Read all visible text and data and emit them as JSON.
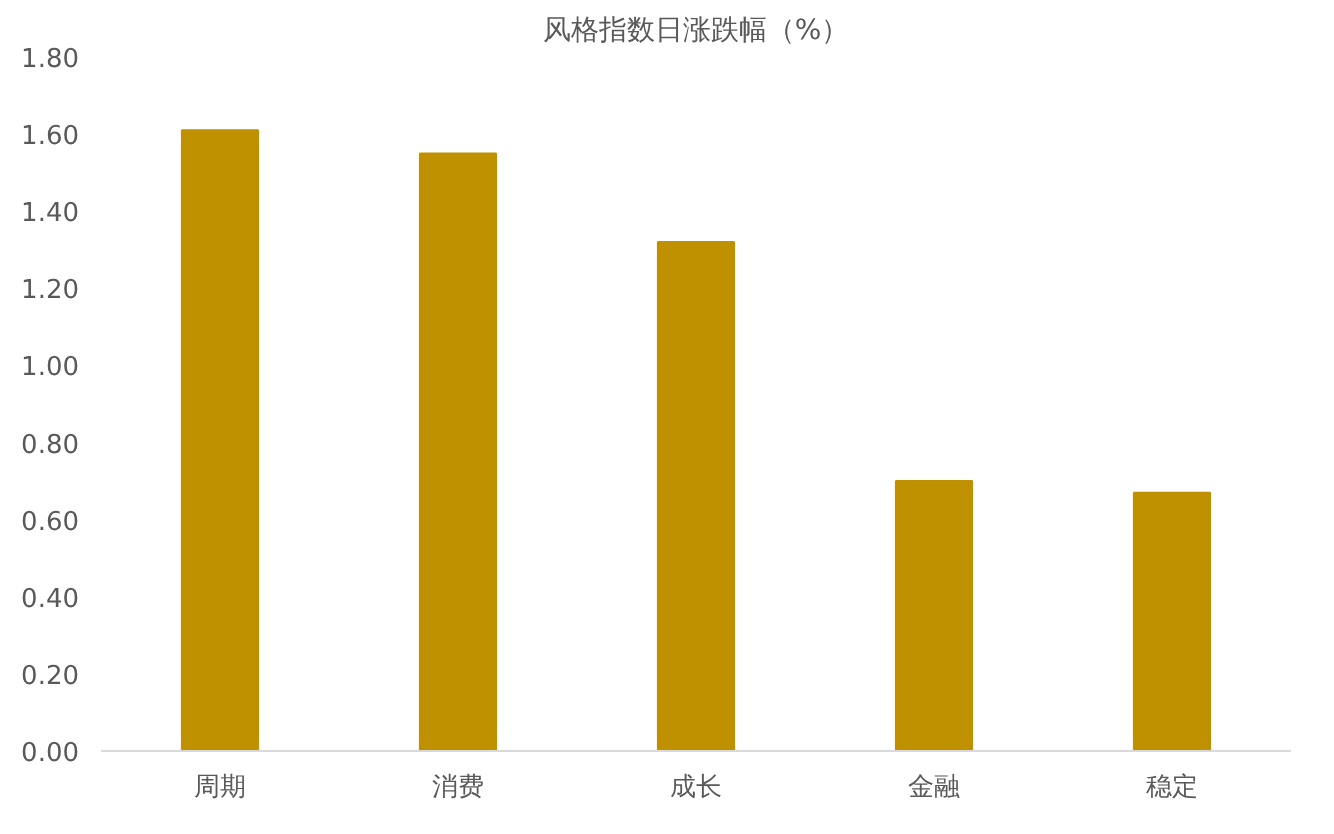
{
  "chart_data": {
    "type": "bar",
    "title": "风格指数日涨跌幅（%）",
    "categories": [
      "周期",
      "消费",
      "成长",
      "金融",
      "稳定"
    ],
    "values": [
      1.61,
      1.55,
      1.32,
      0.7,
      0.67
    ],
    "color": "#bf9000",
    "ylim": [
      0,
      1.8
    ],
    "yticks": [
      {
        "value": 0,
        "label": "0.00"
      },
      {
        "value": 0.2,
        "label": "0.20"
      },
      {
        "value": 0.4,
        "label": "0.40"
      },
      {
        "value": 0.6,
        "label": "0.60"
      },
      {
        "value": 0.8,
        "label": "0.80"
      },
      {
        "value": 1.0,
        "label": "1.00"
      },
      {
        "value": 1.2,
        "label": "1.20"
      },
      {
        "value": 1.4,
        "label": "1.40"
      },
      {
        "value": 1.6,
        "label": "1.60"
      },
      {
        "value": 1.8,
        "label": "1.80"
      }
    ],
    "grid": false
  }
}
